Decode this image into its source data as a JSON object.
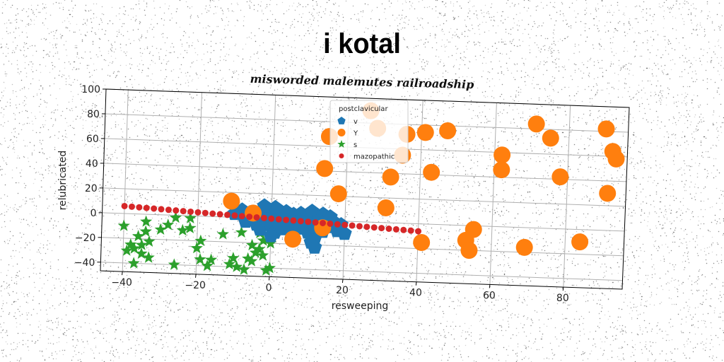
{
  "title": "i kotal",
  "chart_data": {
    "type": "scatter",
    "subtitle": "misworded malemutes railroadship",
    "xlabel": "resweeping",
    "ylabel": "relubricated",
    "xlim": [
      -46,
      96
    ],
    "ylim": [
      -47,
      100
    ],
    "xticks": [
      -40,
      -20,
      0,
      20,
      40,
      60,
      80
    ],
    "yticks": [
      -40,
      -20,
      0,
      20,
      40,
      60,
      80,
      100
    ],
    "grid": true,
    "legend": {
      "title": "postclavicular",
      "placement": "top-center"
    },
    "series": [
      {
        "name": "v",
        "marker": "pentagon",
        "color": "#1f77b4",
        "points": [
          [
            -10,
            3
          ],
          [
            -8,
            6
          ],
          [
            -7,
            -3
          ],
          [
            -6,
            4
          ],
          [
            -5,
            0
          ],
          [
            -4,
            -5
          ],
          [
            -3,
            2
          ],
          [
            -3,
            -9
          ],
          [
            -2,
            6
          ],
          [
            -1,
            -2
          ],
          [
            0,
            3
          ],
          [
            0,
            -6
          ],
          [
            1,
            9
          ],
          [
            1,
            -11
          ],
          [
            2,
            1
          ],
          [
            2,
            -4
          ],
          [
            3,
            5
          ],
          [
            3,
            -8
          ],
          [
            4,
            -1
          ],
          [
            4,
            6
          ],
          [
            5,
            2
          ],
          [
            5,
            -6
          ],
          [
            6,
            -3
          ],
          [
            6,
            4
          ],
          [
            7,
            1
          ],
          [
            8,
            -7
          ],
          [
            8,
            5
          ],
          [
            9,
            0
          ],
          [
            9,
            -4
          ],
          [
            10,
            3
          ],
          [
            10,
            -10
          ],
          [
            11,
            -2
          ],
          [
            11,
            7
          ],
          [
            12,
            -14
          ],
          [
            12,
            -6
          ],
          [
            13,
            2
          ],
          [
            13,
            -3
          ],
          [
            14,
            5
          ],
          [
            14,
            -9
          ],
          [
            15,
            0
          ],
          [
            16,
            -5
          ],
          [
            16,
            3
          ],
          [
            17,
            -1
          ],
          [
            18,
            -8
          ],
          [
            19,
            -3
          ],
          [
            20,
            -10
          ],
          [
            11,
            -18
          ],
          [
            12,
            -22
          ],
          [
            -2,
            10
          ],
          [
            0,
            -14
          ]
        ]
      },
      {
        "name": "Y",
        "marker": "circle",
        "color": "#ff7f0e",
        "points": [
          [
            -11,
            13
          ],
          [
            -5,
            4
          ],
          [
            6,
            -16
          ],
          [
            14,
            -6
          ],
          [
            14,
            42
          ],
          [
            15,
            68
          ],
          [
            18,
            22
          ],
          [
            26,
            90
          ],
          [
            28,
            76
          ],
          [
            31,
            12
          ],
          [
            32,
            37
          ],
          [
            35,
            55
          ],
          [
            36,
            72
          ],
          [
            41,
            -15
          ],
          [
            41,
            74
          ],
          [
            43,
            42
          ],
          [
            47,
            76
          ],
          [
            53,
            -12
          ],
          [
            54,
            -20
          ],
          [
            55,
            -3
          ],
          [
            62,
            58
          ],
          [
            62,
            46
          ],
          [
            69,
            -16
          ],
          [
            71,
            84
          ],
          [
            75,
            73
          ],
          [
            78,
            42
          ],
          [
            84,
            -10
          ],
          [
            90,
            82
          ],
          [
            91,
            30
          ],
          [
            92,
            64
          ],
          [
            93,
            58
          ]
        ]
      },
      {
        "name": "s",
        "marker": "star",
        "color": "#2ca02c",
        "points": [
          [
            -40,
            -10
          ],
          [
            -39,
            -30
          ],
          [
            -38,
            -25
          ],
          [
            -37,
            -28
          ],
          [
            -37,
            -40
          ],
          [
            -36,
            -18
          ],
          [
            -35,
            -25
          ],
          [
            -35,
            -32
          ],
          [
            -34,
            -6
          ],
          [
            -34,
            -14
          ],
          [
            -33,
            -35
          ],
          [
            -33,
            -22
          ],
          [
            -30,
            -12
          ],
          [
            -28,
            -8
          ],
          [
            -26,
            -2
          ],
          [
            -26,
            -40
          ],
          [
            -24,
            -12
          ],
          [
            -22,
            -2
          ],
          [
            -22,
            -10
          ],
          [
            -20,
            -26
          ],
          [
            -19,
            -20
          ],
          [
            -19,
            -35
          ],
          [
            -17,
            -40
          ],
          [
            -16,
            -35
          ],
          [
            -13,
            -14
          ],
          [
            -11,
            -38
          ],
          [
            -10,
            -33
          ],
          [
            -9,
            -40
          ],
          [
            -8,
            -12
          ],
          [
            -7,
            -42
          ],
          [
            -6,
            -33
          ],
          [
            -5,
            -22
          ],
          [
            -5,
            -35
          ],
          [
            -4,
            -28
          ],
          [
            -3,
            -25
          ],
          [
            -3,
            -12
          ],
          [
            -2,
            -18
          ],
          [
            -2,
            -30
          ],
          [
            -1,
            -42
          ],
          [
            0,
            -40
          ],
          [
            0,
            -20
          ],
          [
            1,
            -3
          ]
        ]
      },
      {
        "name": "mazopathic",
        "marker": "dot",
        "color": "#d62728",
        "points": [
          [
            -40,
            6
          ],
          [
            -38,
            5.7
          ],
          [
            -36,
            5.4
          ],
          [
            -34,
            5.1
          ],
          [
            -32,
            4.8
          ],
          [
            -30,
            4.5
          ],
          [
            -28,
            4.2
          ],
          [
            -26,
            3.9
          ],
          [
            -24,
            3.6
          ],
          [
            -22,
            3.3
          ],
          [
            -20,
            3
          ],
          [
            -18,
            2.7
          ],
          [
            -16,
            2.4
          ],
          [
            -14,
            2.1
          ],
          [
            -12,
            1.8
          ],
          [
            -10,
            1.5
          ],
          [
            -8,
            1.2
          ],
          [
            -6,
            0.9
          ],
          [
            -4,
            0.6
          ],
          [
            -2,
            0.3
          ],
          [
            0,
            0
          ],
          [
            2,
            -0.3
          ],
          [
            4,
            -0.6
          ],
          [
            6,
            -0.9
          ],
          [
            8,
            -1.2
          ],
          [
            10,
            -1.5
          ],
          [
            12,
            -1.8
          ],
          [
            14,
            -2.1
          ],
          [
            16,
            -2.4
          ],
          [
            18,
            -2.7
          ],
          [
            20,
            -3
          ],
          [
            22,
            -3.3
          ],
          [
            24,
            -3.6
          ],
          [
            26,
            -3.9
          ],
          [
            28,
            -4.2
          ],
          [
            30,
            -4.5
          ],
          [
            32,
            -4.8
          ],
          [
            34,
            -5.1
          ],
          [
            36,
            -5.4
          ],
          [
            38,
            -5.7
          ],
          [
            40,
            -6
          ]
        ]
      }
    ]
  }
}
